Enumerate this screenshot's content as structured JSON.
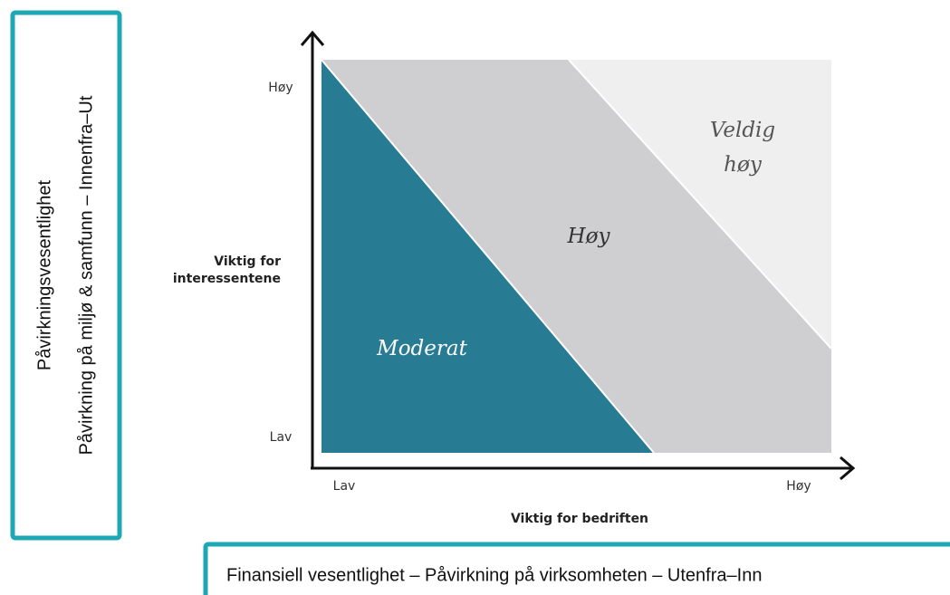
{
  "left_box": {
    "title": "Påvirkningsvesentlighet",
    "subtitle": "Påvirkning på miljø & samfunn – Innenfra–Ut"
  },
  "bottom_box": {
    "text": "Finansiell vesentlighet – Påvirkning på virksomheten – Utenfra–Inn"
  },
  "matrix": {
    "y_axis": {
      "title": [
        "Viktig for",
        "interessentene"
      ],
      "high": "Høy",
      "low": "Lav"
    },
    "x_axis": {
      "title": "Viktig for bedriften",
      "low": "Lav",
      "high": "Høy"
    },
    "regions": {
      "moderate": "Moderat",
      "high": "Høy",
      "very_high": [
        "Veldig",
        "høy"
      ]
    }
  }
}
